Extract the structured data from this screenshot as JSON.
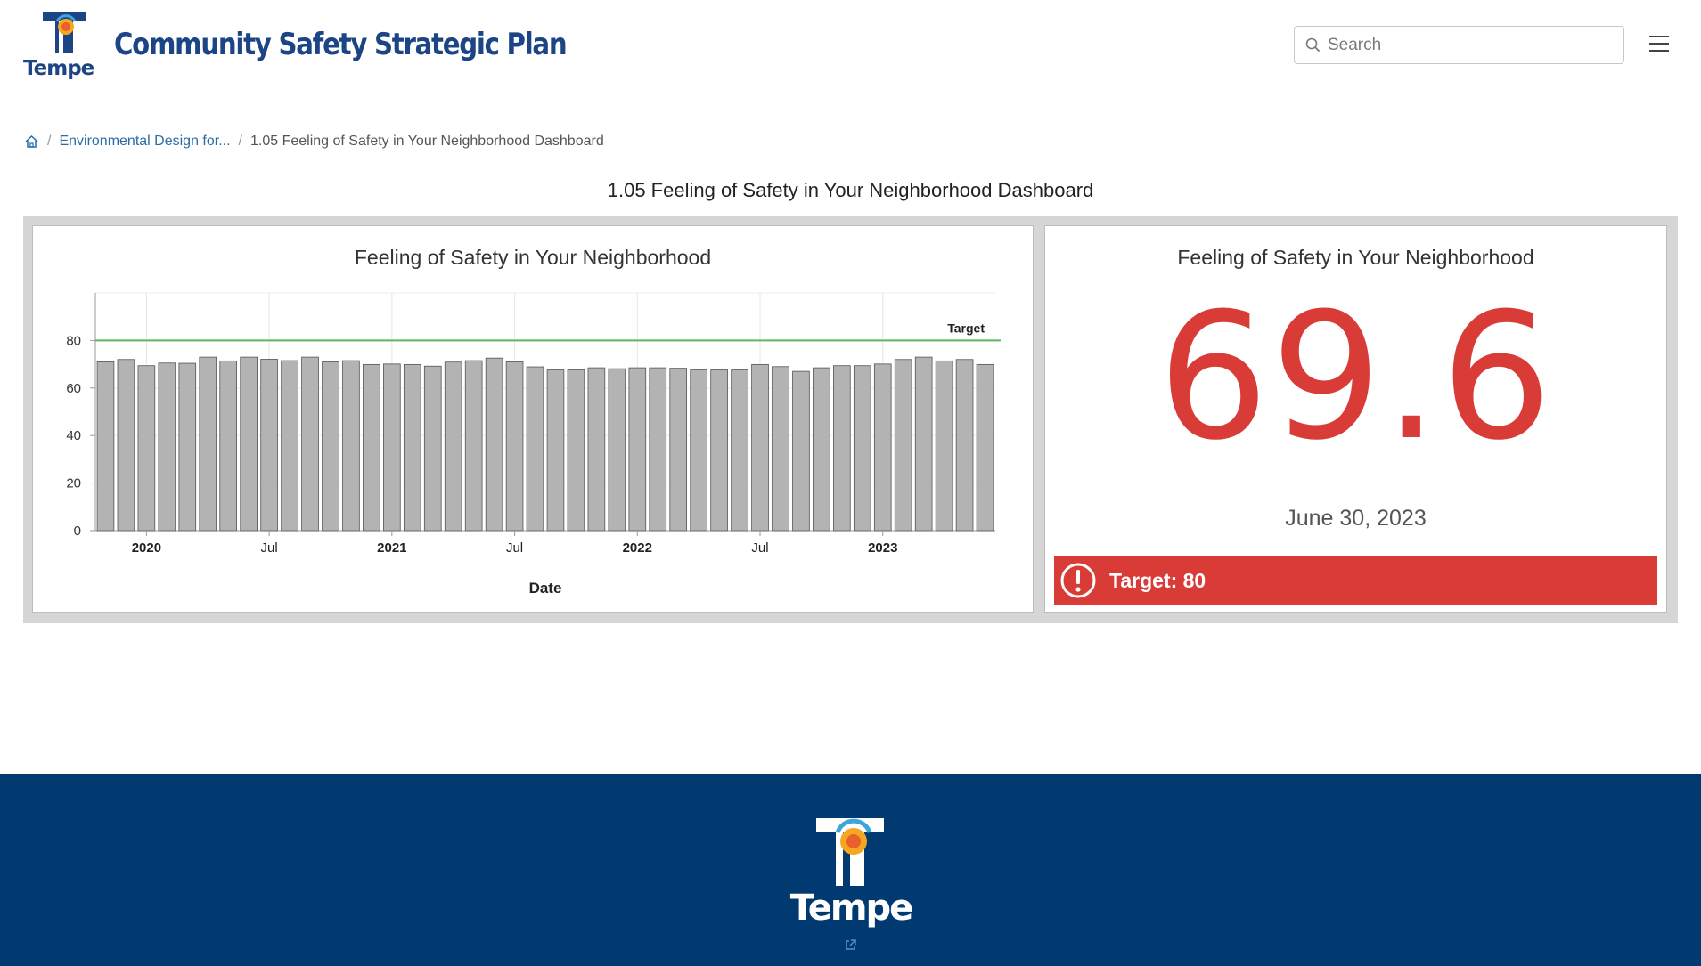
{
  "header": {
    "logo_text": "Tempe",
    "site_title": "Community Safety Strategic Plan",
    "search_placeholder": "Search",
    "icons": {
      "search": "search-icon",
      "menu": "hamburger-menu-icon",
      "logo": "tempe-logo-icon"
    }
  },
  "breadcrumb": {
    "home_icon": "home-icon",
    "items": [
      {
        "label": "Environmental Design for..."
      },
      {
        "label": "1.05 Feeling of Safety in Your Neighborhood Dashboard"
      }
    ]
  },
  "page_title": "1.05 Feeling of Safety in Your Neighborhood Dashboard",
  "chart_panel": {
    "title": "Feeling of Safety in Your Neighborhood"
  },
  "indicator_panel": {
    "title": "Feeling of Safety in Your Neighborhood",
    "value": "69.6",
    "date": "June 30, 2023",
    "target_label": "Target: 80",
    "alert_icon": "exclamation-circle-icon",
    "colors": {
      "value": "#d93c36",
      "target_bar": "#d93c36"
    }
  },
  "footer": {
    "logo_text": "Tempe",
    "link_icon": "external-link-icon",
    "background": "#003a70"
  },
  "chart_data": {
    "type": "bar",
    "title": "Feeling of Safety in Your Neighborhood",
    "xlabel": "Date",
    "ylabel": "",
    "ylim": [
      0,
      100
    ],
    "yticks": [
      0,
      20,
      40,
      60,
      80
    ],
    "x_tick_labels": [
      {
        "label": "2020",
        "bold": true,
        "index": 2
      },
      {
        "label": "Jul",
        "bold": false,
        "index": 8
      },
      {
        "label": "2021",
        "bold": true,
        "index": 14
      },
      {
        "label": "Jul",
        "bold": false,
        "index": 20
      },
      {
        "label": "2022",
        "bold": true,
        "index": 26
      },
      {
        "label": "Jul",
        "bold": false,
        "index": 32
      },
      {
        "label": "2023",
        "bold": true,
        "index": 38
      }
    ],
    "values": [
      71.0,
      72.0,
      69.4,
      70.5,
      70.4,
      73.0,
      71.4,
      73.0,
      72.1,
      71.5,
      73.0,
      71.0,
      71.5,
      69.9,
      70.1,
      69.9,
      69.2,
      70.9,
      71.5,
      72.6,
      71.0,
      68.9,
      67.6,
      67.6,
      68.5,
      68.1,
      68.5,
      68.5,
      68.3,
      67.6,
      67.6,
      67.6,
      69.9,
      69.0,
      67.0,
      68.5,
      69.4,
      69.4,
      70.1,
      72.0,
      73.0,
      71.4,
      72.0,
      69.9
    ],
    "target": {
      "label": "Target",
      "value": 80,
      "color": "#5cb85c"
    },
    "bar_color": "#b3b3b3",
    "grid": true
  }
}
